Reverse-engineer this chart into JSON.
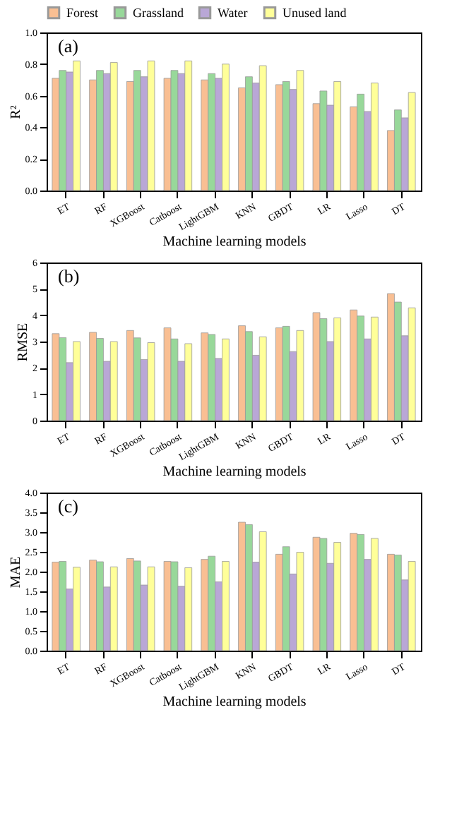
{
  "chart_data": [
    {
      "type": "bar",
      "title": "(a)",
      "xlabel": "Machine learning models",
      "ylabel": "R²",
      "categories": [
        "ET",
        "RF",
        "XGBoost",
        "Catboost",
        "LightGBM",
        "KNN",
        "GBDT",
        "LR",
        "Lasso",
        "DT"
      ],
      "ylim": [
        0,
        1
      ],
      "yticks": [
        {
          "value": 0,
          "label": "0.0"
        },
        0.2,
        0.4,
        0.6,
        0.8,
        {
          "value": 1,
          "label": "1.0"
        }
      ],
      "grid": false,
      "legend": "top",
      "series": [
        {
          "name": "Forest",
          "color": "#f9bf93",
          "values": [
            0.71,
            0.7,
            0.69,
            0.71,
            0.7,
            0.65,
            0.67,
            0.55,
            0.53,
            0.38
          ]
        },
        {
          "name": "Grassland",
          "color": "#98d89a",
          "values": [
            0.76,
            0.76,
            0.76,
            0.76,
            0.74,
            0.72,
            0.69,
            0.63,
            0.61,
            0.51
          ]
        },
        {
          "name": "Water",
          "color": "#b9a7d6",
          "values": [
            0.75,
            0.74,
            0.72,
            0.74,
            0.71,
            0.68,
            0.64,
            0.54,
            0.5,
            0.46
          ]
        },
        {
          "name": "Unused land",
          "color": "#ffff99",
          "values": [
            0.82,
            0.81,
            0.82,
            0.82,
            0.8,
            0.79,
            0.76,
            0.69,
            0.68,
            0.62
          ]
        }
      ]
    },
    {
      "type": "bar",
      "title": "(b)",
      "xlabel": "Machine learning models",
      "ylabel": "RMSE",
      "categories": [
        "ET",
        "RF",
        "XGBoost",
        "Catboost",
        "LightGBM",
        "KNN",
        "GBDT",
        "LR",
        "Lasso",
        "DT"
      ],
      "ylim": [
        0,
        6
      ],
      "yticks": [
        0,
        1,
        2,
        3,
        4,
        5,
        6
      ],
      "grid": false,
      "legend": "top",
      "series": [
        {
          "name": "Forest",
          "color": "#f9bf93",
          "values": [
            3.3,
            3.35,
            3.42,
            3.52,
            3.33,
            3.6,
            3.52,
            4.1,
            4.2,
            4.82
          ]
        },
        {
          "name": "Grassland",
          "color": "#98d89a",
          "values": [
            3.15,
            3.12,
            3.14,
            3.1,
            3.27,
            3.38,
            3.58,
            3.87,
            3.97,
            4.5
          ]
        },
        {
          "name": "Water",
          "color": "#b9a7d6",
          "values": [
            2.2,
            2.25,
            2.32,
            2.25,
            2.36,
            2.48,
            2.62,
            3.0,
            3.1,
            3.22
          ]
        },
        {
          "name": "Unused land",
          "color": "#ffff99",
          "values": [
            3.0,
            3.0,
            2.96,
            2.92,
            3.1,
            3.18,
            3.42,
            3.9,
            3.93,
            4.28
          ]
        }
      ]
    },
    {
      "type": "bar",
      "title": "(c)",
      "xlabel": "Machine learning models",
      "ylabel": "MAE",
      "categories": [
        "ET",
        "RF",
        "XGBoost",
        "Catboost",
        "LightGBM",
        "KNN",
        "GBDT",
        "LR",
        "Lasso",
        "DT"
      ],
      "ylim": [
        0,
        4
      ],
      "yticks": [
        {
          "value": 0,
          "label": "0.0"
        },
        0.5,
        {
          "value": 1,
          "label": "1.0"
        },
        1.5,
        {
          "value": 2,
          "label": "2.0"
        },
        2.5,
        {
          "value": 3,
          "label": "3.0"
        },
        3.5,
        {
          "value": 4,
          "label": "4.0"
        }
      ],
      "grid": false,
      "legend": "top",
      "series": [
        {
          "name": "Forest",
          "color": "#f9bf93",
          "values": [
            2.24,
            2.29,
            2.33,
            2.26,
            2.31,
            3.25,
            2.44,
            2.87,
            2.97,
            2.44
          ]
        },
        {
          "name": "Grassland",
          "color": "#98d89a",
          "values": [
            2.26,
            2.25,
            2.27,
            2.25,
            2.39,
            3.19,
            2.63,
            2.84,
            2.94,
            2.42
          ]
        },
        {
          "name": "Water",
          "color": "#b9a7d6",
          "values": [
            1.56,
            1.61,
            1.66,
            1.63,
            1.74,
            2.24,
            1.94,
            2.21,
            2.31,
            1.79
          ]
        },
        {
          "name": "Unused land",
          "color": "#ffff99",
          "values": [
            2.11,
            2.12,
            2.12,
            2.1,
            2.26,
            3.01,
            2.49,
            2.74,
            2.84,
            2.26
          ]
        }
      ]
    }
  ]
}
